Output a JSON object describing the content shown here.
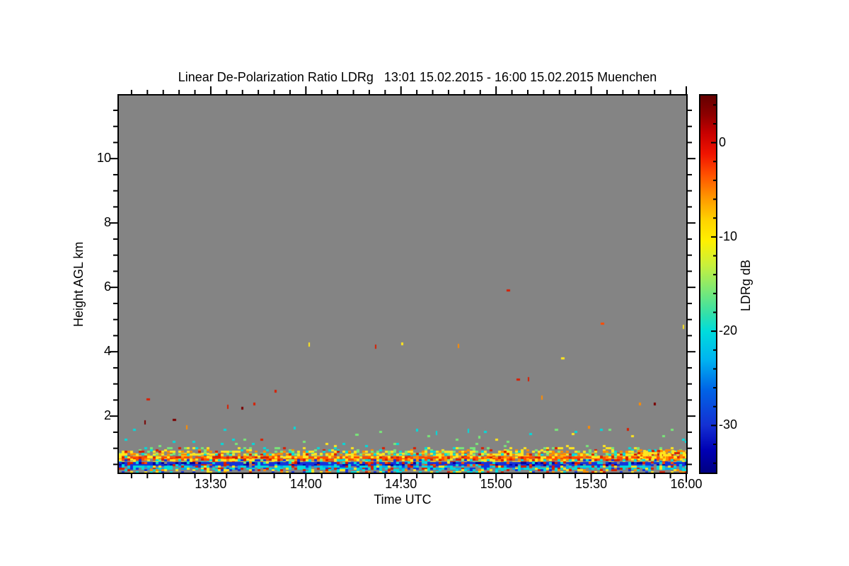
{
  "colors": {
    "page_bg": "#ffffff",
    "axis": "#000000"
  },
  "chart_data": {
    "type": "heatmap",
    "title": "Linear De-Polarization Ratio LDRg   13:01 15.02.2015 - 16:00 15.02.2015 Muenchen",
    "xlabel": "Time UTC",
    "ylabel": "Height AGL km",
    "no_data_color": "#848484",
    "x_axis": {
      "start": "13:01",
      "end": "16:00",
      "major_tick_labels": [
        "13:30",
        "14:00",
        "14:30",
        "15:00",
        "15:30",
        "16:00"
      ],
      "minor_tick_step_minutes": 5
    },
    "y_axis": {
      "min_km": 0.245,
      "max_km": 11.96,
      "major_ticks_km": [
        2,
        4,
        6,
        8,
        10
      ],
      "major_tick_labels": [
        "2",
        "4",
        "6",
        "8",
        "10"
      ],
      "minor_tick_step_km": 0.5
    },
    "colorbar": {
      "label": "LDRg dB",
      "top_db": 5,
      "bottom_db": -35,
      "major_ticks_db": [
        0,
        -10,
        -20,
        -30
      ],
      "major_tick_labels": [
        "0",
        "-10",
        "-20",
        "-30"
      ],
      "minor_tick_step_db": 2,
      "colormap": "rainbow",
      "gradient_stops": [
        [
          0.0,
          "#640000"
        ],
        [
          0.05,
          "#8c0000"
        ],
        [
          0.1,
          "#c80000"
        ],
        [
          0.155,
          "#f01400"
        ],
        [
          0.21,
          "#ff5000"
        ],
        [
          0.27,
          "#ff9600"
        ],
        [
          0.33,
          "#ffd200"
        ],
        [
          0.385,
          "#fff000"
        ],
        [
          0.45,
          "#c8f03c"
        ],
        [
          0.52,
          "#78e878"
        ],
        [
          0.58,
          "#32e0aa"
        ],
        [
          0.625,
          "#00dcdc"
        ],
        [
          0.7,
          "#00b4f0"
        ],
        [
          0.78,
          "#0064e6"
        ],
        [
          0.875,
          "#1430d2"
        ],
        [
          0.94,
          "#0000b4"
        ],
        [
          1.0,
          "#000082"
        ]
      ]
    },
    "palette": {
      "darkred": "#7a0000",
      "red": "#d81e00",
      "orangered": "#ff4b00",
      "orange": "#ff8c00",
      "yellow": "#ffe61e",
      "green": "#78e878",
      "cyan": "#00dcdc",
      "lightblue": "#00aaf0",
      "blue": "#1432dc",
      "navy": "#0000a0"
    },
    "noise_bands": [
      {
        "top_km": 1.6,
        "bot_km": 1.3,
        "density": 0.008,
        "cells": [
          [
            "cyan",
            3
          ],
          [
            "green",
            2
          ],
          [
            "yellow",
            1
          ]
        ]
      },
      {
        "top_km": 1.3,
        "bot_km": 1.03,
        "density": 0.03,
        "cells": [
          [
            "cyan",
            3
          ],
          [
            "green",
            3
          ],
          [
            "yellow",
            1
          ],
          [
            "red",
            1
          ]
        ]
      },
      {
        "top_km": 1.03,
        "bot_km": 0.92,
        "density": 0.25,
        "cells": [
          [
            "yellow",
            3
          ],
          [
            "green",
            3
          ],
          [
            "cyan",
            2
          ],
          [
            "orange",
            1
          ],
          [
            "red",
            1
          ]
        ]
      },
      {
        "top_km": 0.92,
        "bot_km": 0.83,
        "density": 0.55,
        "cells": [
          [
            "yellow",
            4
          ],
          [
            "green",
            2
          ],
          [
            "cyan",
            1
          ],
          [
            "orange",
            2
          ],
          [
            "red",
            1
          ]
        ]
      },
      {
        "top_km": 0.83,
        "bot_km": 0.76,
        "density": 0.72,
        "cells": [
          [
            "yellow",
            4
          ],
          [
            "orange",
            2
          ],
          [
            "green",
            1
          ],
          [
            "red",
            1
          ],
          [
            "cyan",
            1
          ]
        ]
      },
      {
        "top_km": 0.76,
        "bot_km": 0.67,
        "density": 0.94,
        "cells": [
          [
            "orangered",
            5
          ],
          [
            "red",
            2
          ],
          [
            "orange",
            2
          ],
          [
            "yellow",
            2
          ]
        ]
      },
      {
        "top_km": 0.67,
        "bot_km": 0.57,
        "density": 0.62,
        "cells": [
          [
            "yellow",
            3
          ],
          [
            "cyan",
            2
          ],
          [
            "orange",
            2
          ],
          [
            "red",
            1
          ],
          [
            "green",
            1
          ],
          [
            "blue",
            1
          ]
        ]
      },
      {
        "top_km": 0.57,
        "bot_km": 0.455,
        "density": 0.93,
        "cells": [
          [
            "blue",
            6
          ],
          [
            "navy",
            2
          ],
          [
            "red",
            1
          ],
          [
            "orangered",
            1
          ],
          [
            "cyan",
            1
          ]
        ]
      },
      {
        "top_km": 0.455,
        "bot_km": 0.35,
        "density": 0.78,
        "cells": [
          [
            "cyan",
            4
          ],
          [
            "lightblue",
            2
          ],
          [
            "blue",
            1
          ],
          [
            "yellow",
            1
          ],
          [
            "red",
            1
          ]
        ]
      },
      {
        "top_km": 0.35,
        "bot_km": 0.25,
        "density": 0.38,
        "cells": [
          [
            "cyan",
            2
          ],
          [
            "yellow",
            2
          ],
          [
            "red",
            1
          ],
          [
            "blue",
            1
          ],
          [
            "orange",
            1
          ]
        ]
      },
      {
        "t0": 0.915,
        "t1": 1.0,
        "top_km": 0.95,
        "bot_km": 0.62,
        "density": 0.55,
        "cells": [
          [
            "yellow",
            6
          ],
          [
            "orange",
            2
          ],
          [
            "red",
            1
          ],
          [
            "green",
            1
          ]
        ]
      }
    ],
    "specks": [
      [
        0.046,
        1.8,
        "darkred"
      ],
      [
        0.052,
        2.51,
        "red"
      ],
      [
        0.098,
        1.89,
        "darkred"
      ],
      [
        0.12,
        1.65,
        "orange"
      ],
      [
        0.192,
        2.29,
        "red"
      ],
      [
        0.218,
        2.24,
        "darkred"
      ],
      [
        0.239,
        2.37,
        "red"
      ],
      [
        0.276,
        2.77,
        "red"
      ],
      [
        0.31,
        1.62,
        "cyan"
      ],
      [
        0.335,
        4.22,
        "yellow"
      ],
      [
        0.42,
        1.43,
        "green"
      ],
      [
        0.453,
        4.15,
        "red"
      ],
      [
        0.499,
        4.24,
        "yellow"
      ],
      [
        0.526,
        1.56,
        "cyan"
      ],
      [
        0.56,
        1.47,
        "cyan"
      ],
      [
        0.599,
        4.18,
        "orange"
      ],
      [
        0.616,
        1.54,
        "cyan"
      ],
      [
        0.635,
        1.35,
        "green"
      ],
      [
        0.686,
        5.91,
        "red"
      ],
      [
        0.704,
        3.14,
        "red"
      ],
      [
        0.722,
        3.14,
        "red"
      ],
      [
        0.746,
        2.57,
        "orange"
      ],
      [
        0.771,
        1.58,
        "green"
      ],
      [
        0.782,
        3.8,
        "yellow"
      ],
      [
        0.828,
        1.65,
        "orange"
      ],
      [
        0.852,
        4.88,
        "orangered"
      ],
      [
        0.897,
        1.58,
        "red"
      ],
      [
        0.918,
        2.37,
        "orange"
      ],
      [
        0.945,
        2.37,
        "darkred"
      ],
      [
        0.995,
        4.77,
        "yellow"
      ]
    ]
  }
}
